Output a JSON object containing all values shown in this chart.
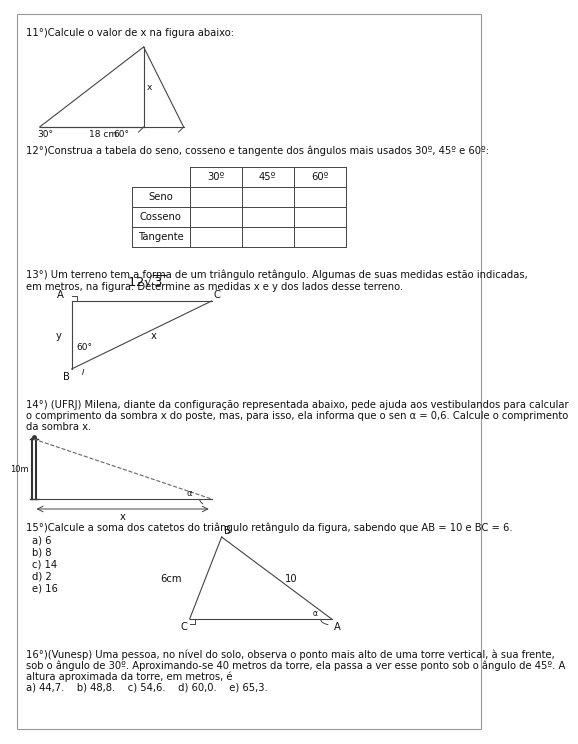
{
  "bg_color": "#ffffff",
  "border_color": "#aaaaaa",
  "text_color": "#222222",
  "q11_text": "11°)Calcule o valor de x na figura abaixo:",
  "q12_text": "12°)Construa a tabela do seno, cosseno e tangente dos ângulos mais usados 30º, 45º e 60º:",
  "q13_text1": "13°) Um terreno tem a forma de um triângulo retângulo. Algumas de suas medidas estão indicadas,",
  "q13_text2": "em metros, na figura. Determine as medidas x e y dos lados desse terreno.",
  "q14_text1": "14°) (UFRJ) Milena, diante da configuração representada abaixo, pede ajuda aos vestibulandos para calcular",
  "q14_text2": "o comprimento da sombra x do poste, mas, para isso, ela informa que o sen α = 0,6. Calcule o comprimento",
  "q14_text3": "da sombra x.",
  "q15_text": "15°)Calcule a soma dos catetos do triângulo retângulo da figura, sabendo que AB = 10 e BC = 6.",
  "q15_opts": [
    "a) 6",
    "b) 8",
    "c) 14",
    "d) 2",
    "e) 16"
  ],
  "q16_text1": "16°)(Vunesp) Uma pessoa, no nível do solo, observa o ponto mais alto de uma torre vertical, à sua frente,",
  "q16_text2": "sob o ângulo de 30º. Aproximando-se 40 metros da torre, ela passa a ver esse ponto sob o ângulo de 45º. A",
  "q16_text3": "altura aproximada da torre, em metros, é",
  "q16_opts": "a) 44,7.    b) 48,8.    c) 54,6.    d) 60,0.    e) 65,3.",
  "table_rows": [
    "Seno",
    "Cosseno",
    "Tangente"
  ],
  "table_cols": [
    "30º",
    "45º",
    "60º"
  ]
}
